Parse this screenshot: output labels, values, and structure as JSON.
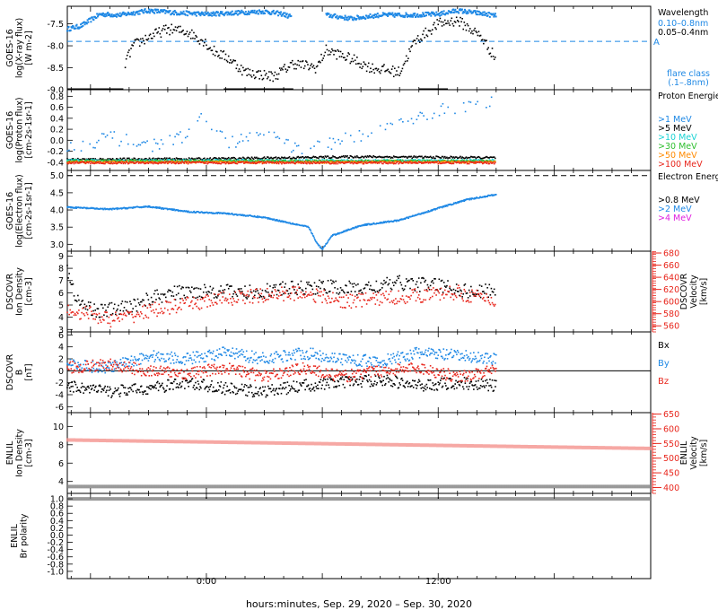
{
  "x_axis": {
    "title": "hours:minutes, Sep. 29, 2020 – Sep. 30, 2020",
    "ticks": [
      {
        "h": 0,
        "label": "0:00"
      },
      {
        "h": 12,
        "label": "12:00"
      }
    ],
    "range_hours": [
      -7.2,
      23
    ]
  },
  "colors": {
    "blue": "#1e88e5",
    "black": "#000000",
    "red": "#e8261c",
    "cyan": "#19d3d3",
    "green": "#2fbf2f",
    "orange": "#ff8a00",
    "magenta": "#e020e0"
  },
  "chart_data": [
    {
      "id": "xray",
      "type": "scatter",
      "ylabel": [
        "GOES-16",
        "log(X-ray flux)",
        "[W m-2]"
      ],
      "ylim": [
        -9.0,
        -7.1
      ],
      "ticks": [
        -9.0,
        -8.5,
        -8.0,
        -7.5
      ],
      "tick_labels": [
        "-9.0",
        "-8.5",
        "-8.0",
        "-7.5"
      ],
      "legend_title": "Wavelength",
      "legend": [
        {
          "label": "0.10–0.8nm",
          "color": "blue"
        },
        {
          "label": "0.05–0.4nm",
          "color": "black"
        }
      ],
      "threshold": {
        "value": -7.9,
        "label": "A",
        "color": "blue"
      },
      "extra_label": [
        "flare class",
        "(.1–.8nm)"
      ],
      "series": [
        {
          "name": "0.10–0.8nm",
          "color": "blue",
          "points": [
            [
              -7.2,
              -7.62
            ],
            [
              -6.5,
              -7.55
            ],
            [
              -5.5,
              -7.28
            ],
            [
              -4.5,
              -7.3
            ],
            [
              -3.0,
              -7.2
            ],
            [
              -1.5,
              -7.25
            ],
            [
              0,
              -7.28
            ],
            [
              1.5,
              -7.25
            ],
            [
              3,
              -7.22
            ],
            [
              4,
              -7.28
            ],
            [
              4.2,
              -7.32
            ],
            [
              6.2,
              -7.3
            ],
            [
              7.5,
              -7.38
            ],
            [
              9,
              -7.3
            ],
            [
              10.5,
              -7.3
            ],
            [
              12,
              -7.28
            ],
            [
              13,
              -7.2
            ],
            [
              14.5,
              -7.28
            ],
            [
              15,
              -7.32
            ]
          ]
        },
        {
          "name": "0.05–0.4nm",
          "color": "black",
          "points": [
            [
              -4.2,
              -8.4
            ],
            [
              -3.8,
              -8.0
            ],
            [
              -3.0,
              -7.8
            ],
            [
              -2.0,
              -7.62
            ],
            [
              -1.0,
              -7.68
            ],
            [
              -0.1,
              -7.9
            ],
            [
              0.3,
              -8.1
            ],
            [
              1.2,
              -8.3
            ],
            [
              2.0,
              -8.6
            ],
            [
              3.5,
              -8.7
            ],
            [
              4.5,
              -8.4
            ],
            [
              5.7,
              -8.5
            ],
            [
              6.2,
              -8.1
            ],
            [
              7.5,
              -8.3
            ],
            [
              8.5,
              -8.5
            ],
            [
              10,
              -8.6
            ],
            [
              10.8,
              -7.9
            ],
            [
              12,
              -7.5
            ],
            [
              13,
              -7.42
            ],
            [
              14.2,
              -7.78
            ],
            [
              15,
              -8.3
            ]
          ]
        }
      ]
    },
    {
      "id": "proton",
      "type": "scatter",
      "ylabel": [
        "GOES-16",
        "log(Proton flux)",
        "[cm-2s-1sr-1]"
      ],
      "ylim": [
        -0.55,
        0.92
      ],
      "ticks": [
        -0.4,
        -0.2,
        0.0,
        0.2,
        0.4,
        0.6,
        0.8
      ],
      "tick_labels": [
        "-0.4",
        "-0.2",
        "0.0",
        "0.2",
        "0.4",
        "0.6",
        "0.8"
      ],
      "legend_title": "Proton Energies",
      "legend": [
        {
          "label": ">1 MeV",
          "color": "blue"
        },
        {
          "label": ">5 MeV",
          "color": "black"
        },
        {
          "label": ">10 MeV",
          "color": "cyan"
        },
        {
          "label": ">30 MeV",
          "color": "green"
        },
        {
          "label": ">50 MeV",
          "color": "orange"
        },
        {
          "label": ">100 MeV",
          "color": "red"
        }
      ],
      "series": [
        {
          "name": ">1 MeV",
          "color": "blue",
          "points": [
            [
              -7.2,
              -0.15
            ],
            [
              -5,
              0.05
            ],
            [
              -3,
              -0.1
            ],
            [
              -1.5,
              0.0
            ],
            [
              0,
              0.45
            ],
            [
              1,
              -0.05
            ],
            [
              3,
              0.1
            ],
            [
              5,
              -0.2
            ],
            [
              7,
              0.0
            ],
            [
              9,
              0.2
            ],
            [
              11,
              0.45
            ],
            [
              13,
              0.6
            ],
            [
              15,
              0.75
            ]
          ]
        },
        {
          "name": ">5 MeV",
          "color": "black",
          "points": [
            [
              -7.2,
              -0.35
            ],
            [
              0,
              -0.34
            ],
            [
              8,
              -0.3
            ],
            [
              15,
              -0.32
            ]
          ]
        },
        {
          "name": ">10 MeV",
          "color": "cyan",
          "points": [
            [
              -7.2,
              -0.37
            ],
            [
              15,
              -0.37
            ]
          ]
        },
        {
          "name": ">30 MeV",
          "color": "green",
          "points": [
            [
              -7.2,
              -0.38
            ],
            [
              15,
              -0.38
            ]
          ]
        },
        {
          "name": ">50 MeV",
          "color": "orange",
          "points": [
            [
              -7.2,
              -0.4
            ],
            [
              15,
              -0.4
            ]
          ]
        },
        {
          "name": ">100 MeV",
          "color": "red",
          "points": [
            [
              -7.2,
              -0.41
            ],
            [
              15,
              -0.41
            ]
          ]
        }
      ]
    },
    {
      "id": "electron",
      "type": "scatter",
      "ylabel": [
        "GOES-16",
        "log(Electron flux)",
        "[cm-2s-1sr-1]"
      ],
      "ylim": [
        2.8,
        5.15
      ],
      "ticks": [
        3.0,
        3.5,
        4.0,
        4.5,
        5.0
      ],
      "tick_labels": [
        "3.0",
        "3.5",
        "4.0",
        "4.5",
        "5.0"
      ],
      "legend_title": "Electron Energies",
      "legend": [
        {
          "label": ">0.8 MeV",
          "color": "black"
        },
        {
          "label": ">2 MeV",
          "color": "blue"
        },
        {
          "label": ">4 MeV",
          "color": "magenta"
        }
      ],
      "threshold": {
        "value": 5.0,
        "label": "",
        "color": "black"
      },
      "series": [
        {
          "name": ">2 MeV",
          "color": "blue",
          "points": [
            [
              -7.2,
              4.08
            ],
            [
              -5,
              4.02
            ],
            [
              -3,
              4.1
            ],
            [
              -1,
              3.95
            ],
            [
              1,
              3.9
            ],
            [
              3,
              3.78
            ],
            [
              4.5,
              3.6
            ],
            [
              5.3,
              3.5
            ],
            [
              5.7,
              3.05
            ],
            [
              6,
              2.85
            ],
            [
              6.5,
              3.25
            ],
            [
              8,
              3.55
            ],
            [
              10,
              3.7
            ],
            [
              12,
              4.05
            ],
            [
              13.5,
              4.3
            ],
            [
              15,
              4.45
            ]
          ]
        }
      ]
    },
    {
      "id": "dscovr_density",
      "type": "scatter",
      "ylabel": [
        "DSCOVR",
        "Ion Density",
        "[cm-3]"
      ],
      "ylim": [
        2.8,
        9.4
      ],
      "ticks": [
        3,
        4,
        5,
        6,
        7,
        8,
        9
      ],
      "tick_labels": [
        "3",
        "4",
        "5",
        "6",
        "7",
        "8",
        "9"
      ],
      "ylabel_right": [
        "DSCOVR",
        "Velocity",
        "[km/s]"
      ],
      "ylim_right": [
        550,
        683
      ],
      "ticks_right": [
        560,
        580,
        600,
        620,
        640,
        660,
        680
      ],
      "tick_labels_right": [
        "560",
        "580",
        "600",
        "620",
        "640",
        "660",
        "680"
      ],
      "series": [
        {
          "name": "Ion Density",
          "color": "black",
          "points": [
            [
              -7.2,
              8.0
            ],
            [
              -7,
              6.5
            ],
            [
              -6.5,
              5.0
            ],
            [
              -5.5,
              4.5
            ],
            [
              -4,
              4.8
            ],
            [
              -3,
              5.5
            ],
            [
              -1.5,
              6.0
            ],
            [
              0,
              6.2
            ],
            [
              2,
              6.0
            ],
            [
              4,
              6.3
            ],
            [
              6,
              6.5
            ],
            [
              8,
              6.3
            ],
            [
              10,
              6.8
            ],
            [
              12,
              6.6
            ],
            [
              14,
              6.0
            ],
            [
              15,
              6.3
            ]
          ]
        },
        {
          "name": "Velocity",
          "color": "red",
          "axis": "right",
          "points": [
            [
              -7.2,
              585
            ],
            [
              -6,
              580
            ],
            [
              -5,
              570
            ],
            [
              -4,
              575
            ],
            [
              -3,
              585
            ],
            [
              -1,
              595
            ],
            [
              1,
              605
            ],
            [
              3,
              610
            ],
            [
              5,
              615
            ],
            [
              7,
              600
            ],
            [
              9,
              605
            ],
            [
              11,
              610
            ],
            [
              13,
              615
            ],
            [
              15,
              600
            ]
          ]
        }
      ]
    },
    {
      "id": "dscovr_b",
      "type": "scatter",
      "ylabel": [
        "DSCOVR",
        "B",
        "[nT]"
      ],
      "ylim": [
        -7.0,
        6.5
      ],
      "ticks": [
        -6,
        -4,
        -2,
        0,
        2,
        4,
        6
      ],
      "tick_labels": [
        "-6",
        "-4",
        "-2",
        "0",
        "2",
        "4",
        "6"
      ],
      "zero_line": true,
      "legend": [
        {
          "label": "Bx",
          "color": "black"
        },
        {
          "label": "By",
          "color": "blue"
        },
        {
          "label": "Bz",
          "color": "red"
        }
      ],
      "series": [
        {
          "name": "Bx",
          "color": "black",
          "points": [
            [
              -7.2,
              -2.5
            ],
            [
              -5,
              -3.5
            ],
            [
              -3,
              -3.0
            ],
            [
              -1,
              -2.0
            ],
            [
              1,
              -3.0
            ],
            [
              3,
              -3.5
            ],
            [
              5,
              -2.5
            ],
            [
              7,
              -2.0
            ],
            [
              9,
              -1.5
            ],
            [
              11,
              -2.5
            ],
            [
              13,
              -2.0
            ],
            [
              15,
              -2.5
            ]
          ]
        },
        {
          "name": "By",
          "color": "blue",
          "points": [
            [
              -7.2,
              1.0
            ],
            [
              -5,
              0.5
            ],
            [
              -3,
              2.5
            ],
            [
              -1,
              2.0
            ],
            [
              1,
              3.0
            ],
            [
              3,
              2.0
            ],
            [
              5,
              3.0
            ],
            [
              7,
              2.0
            ],
            [
              9,
              1.5
            ],
            [
              11,
              3.0
            ],
            [
              13,
              2.5
            ],
            [
              15,
              2.0
            ]
          ]
        },
        {
          "name": "Bz",
          "color": "red",
          "points": [
            [
              -7.2,
              0.5
            ],
            [
              -5,
              1.0
            ],
            [
              -3,
              0.0
            ],
            [
              -1,
              -0.5
            ],
            [
              1,
              0.5
            ],
            [
              3,
              -1.0
            ],
            [
              5,
              0.5
            ],
            [
              7,
              -1.0
            ],
            [
              9,
              0.0
            ],
            [
              11,
              0.5
            ],
            [
              13,
              -1.0
            ],
            [
              15,
              0.0
            ]
          ]
        }
      ]
    },
    {
      "id": "enlil_density",
      "type": "line",
      "ylabel": [
        "ENLIL",
        "Ion Density",
        "[cm-3]"
      ],
      "ylim": [
        2.7,
        11.5
      ],
      "ticks": [
        4,
        6,
        8,
        10
      ],
      "tick_labels": [
        "4",
        "6",
        "8",
        "10"
      ],
      "ylabel_right": [
        "ENLIL",
        "Velocity",
        "[km/s]"
      ],
      "ylim_right": [
        380,
        655
      ],
      "ticks_right": [
        400,
        450,
        500,
        550,
        600,
        650
      ],
      "tick_labels_right": [
        "400",
        "450",
        "500",
        "550",
        "600",
        "650"
      ],
      "series": [
        {
          "name": "Ion Density",
          "color": "black",
          "points": [
            [
              -7.2,
              3.45
            ],
            [
              23,
              3.45
            ]
          ]
        },
        {
          "name": "Velocity",
          "color": "red",
          "axis": "right",
          "points": [
            [
              -7.2,
              562
            ],
            [
              23,
              533
            ]
          ]
        }
      ]
    },
    {
      "id": "enlil_polarity",
      "type": "line",
      "ylabel": [
        "ENLIL",
        "Br polarity"
      ],
      "ylim": [
        -1.2,
        1.15
      ],
      "ticks": [
        -1.0,
        -0.8,
        -0.6,
        -0.4,
        -0.2,
        0.0,
        0.2,
        0.4,
        0.6,
        0.8,
        1.0
      ],
      "tick_labels": [
        "-1.0",
        "-0.8",
        "-0.6",
        "-0.4",
        "-0.2",
        "0.0",
        "0.2",
        "0.4",
        "0.6",
        "0.8",
        "1.0"
      ],
      "series": [
        {
          "name": "Br polarity",
          "color": "black",
          "points": [
            [
              -7.2,
              1.0
            ],
            [
              23,
              1.0
            ]
          ]
        }
      ]
    }
  ]
}
